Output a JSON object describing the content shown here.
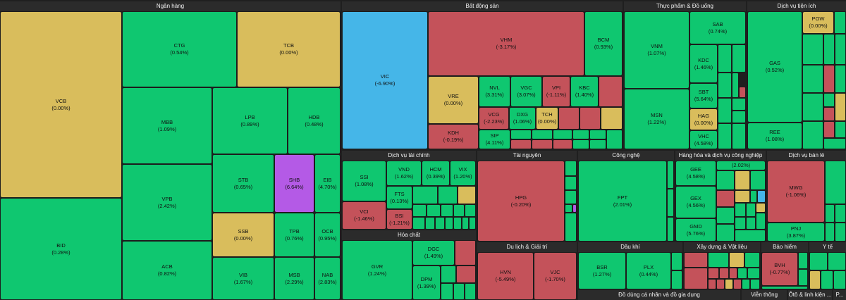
{
  "colors": {
    "up": "#0fc770",
    "flat": "#d9bd5c",
    "down": "#c4525a",
    "floor": "#45b6e8",
    "ceiling": "#b45ae6"
  },
  "sectors": {
    "ngan_hang": "Ngân hàng",
    "bat_dong_san": "Bất động sản",
    "thuc_pham": "Thực phẩm & Đồ uống",
    "dich_vu_tien_ich": "Dịch vụ tiện ích",
    "dich_vu_tai_chinh": "Dịch vụ tài chính",
    "tai_nguyen": "Tài nguyên",
    "cong_nghe": "Công nghệ",
    "hang_hoa": "Hàng hóa và dịch vụ công nghiệp",
    "dich_vu_ban_le": "Dịch vụ bán lẻ",
    "hoa_chat": "Hóa chất",
    "du_lich": "Du lịch & Giải trí",
    "dau_khi": "Dầu khí",
    "xay_dung": "Xây dựng & Vật liệu",
    "bao_hiem": "Bảo hiểm",
    "y_te": "Y tế",
    "do_dung": "Đồ dùng cá nhân và đồ gia dụng",
    "vien_thong": "Viễn thông",
    "oto": "Ôtô & linh kiện ...",
    "p": "P..."
  },
  "tiles": {
    "VCB": {
      "ticker": "VCB",
      "change": "(0.00%)"
    },
    "BID": {
      "ticker": "BID",
      "change": "(0.28%)"
    },
    "CTG": {
      "ticker": "CTG",
      "change": "(0.54%)"
    },
    "TCB": {
      "ticker": "TCB",
      "change": "(0.00%)"
    },
    "MBB": {
      "ticker": "MBB",
      "change": "(1.09%)"
    },
    "LPB": {
      "ticker": "LPB",
      "change": "(0.89%)"
    },
    "HDB": {
      "ticker": "HDB",
      "change": "(0.48%)"
    },
    "VPB": {
      "ticker": "VPB",
      "change": "(2.42%)"
    },
    "STB": {
      "ticker": "STB",
      "change": "(0.65%)"
    },
    "SHB": {
      "ticker": "SHB",
      "change": "(6.64%)"
    },
    "EIB": {
      "ticker": "EIB",
      "change": "(4.70%)"
    },
    "ACB": {
      "ticker": "ACB",
      "change": "(0.82%)"
    },
    "SSB": {
      "ticker": "SSB",
      "change": "(0.00%)"
    },
    "TPB": {
      "ticker": "TPB",
      "change": "(0.76%)"
    },
    "OCB": {
      "ticker": "OCB",
      "change": "(0.95%)"
    },
    "VIB": {
      "ticker": "VIB",
      "change": "(1.67%)"
    },
    "MSB": {
      "ticker": "MSB",
      "change": "(2.29%)"
    },
    "NAB": {
      "ticker": "NAB",
      "change": "(2.83%)"
    },
    "VIC": {
      "ticker": "VIC",
      "change": "(-6.90%)"
    },
    "VHM": {
      "ticker": "VHM",
      "change": "(-3.17%)"
    },
    "BCM": {
      "ticker": "BCM",
      "change": "(0.93%)"
    },
    "VRE": {
      "ticker": "VRE",
      "change": "(0.00%)"
    },
    "NVL": {
      "ticker": "NVL",
      "change": "(3.31%)"
    },
    "VGC": {
      "ticker": "VGC",
      "change": "(3.07%)"
    },
    "VPI": {
      "ticker": "VPI",
      "change": "(-1.11%)"
    },
    "KBC": {
      "ticker": "KBC",
      "change": "(1.40%)"
    },
    "VCG": {
      "ticker": "VCG",
      "change": "(-2.23%)"
    },
    "DXG": {
      "ticker": "DXG",
      "change": "(1.06%)"
    },
    "TCH": {
      "ticker": "TCH",
      "change": "(0.00%)"
    },
    "KDH": {
      "ticker": "KDH",
      "change": "(-0.19%)"
    },
    "SIP": {
      "ticker": "SIP",
      "change": "(4.11%)"
    },
    "VNM": {
      "ticker": "VNM",
      "change": "(1.07%)"
    },
    "SAB": {
      "ticker": "SAB",
      "change": "(0.74%)"
    },
    "KDC": {
      "ticker": "KDC",
      "change": "(1.46%)"
    },
    "SBT": {
      "ticker": "SBT",
      "change": "(5.64%)"
    },
    "MSN": {
      "ticker": "MSN",
      "change": "(1.22%)"
    },
    "HAG": {
      "ticker": "HAG",
      "change": "(0.00%)"
    },
    "VHC": {
      "ticker": "VHC",
      "change": "(4.58%)"
    },
    "POW": {
      "ticker": "POW",
      "change": "(0.00%)"
    },
    "GAS": {
      "ticker": "GAS",
      "change": "(0.52%)"
    },
    "REE": {
      "ticker": "REE",
      "change": "(1.08%)"
    },
    "SSI": {
      "ticker": "SSI",
      "change": "(1.08%)"
    },
    "VND": {
      "ticker": "VND",
      "change": "(1.62%)"
    },
    "HCM": {
      "ticker": "HCM",
      "change": "(0.39%)"
    },
    "VIX": {
      "ticker": "VIX",
      "change": "(1.20%)"
    },
    "FTS": {
      "ticker": "FTS",
      "change": "(0.13%)"
    },
    "VCI": {
      "ticker": "VCI",
      "change": "(-1.46%)"
    },
    "BSI": {
      "ticker": "BSI",
      "change": "(-1.21%)"
    },
    "HPG": {
      "ticker": "HPG",
      "change": "(-0.20%)"
    },
    "FPT": {
      "ticker": "FPT",
      "change": "(2.01%)"
    },
    "GEE": {
      "ticker": "GEE",
      "change": "(4.58%)"
    },
    "GEE2": {
      "ticker": "",
      "change": "(2.02%)"
    },
    "GEX": {
      "ticker": "GEX",
      "change": "(4.56%)"
    },
    "GMD": {
      "ticker": "GMD",
      "change": "(5.76%)"
    },
    "MWG": {
      "ticker": "MWG",
      "change": "(-1.06%)"
    },
    "PNJ": {
      "ticker": "PNJ",
      "change": "(3.87%)"
    },
    "GVR": {
      "ticker": "GVR",
      "change": "(1.24%)"
    },
    "DGC": {
      "ticker": "DGC",
      "change": "(1.49%)"
    },
    "DPM": {
      "ticker": "DPM",
      "change": "(1.39%)"
    },
    "HVN": {
      "ticker": "HVN",
      "change": "(-5.49%)"
    },
    "VJC": {
      "ticker": "VJC",
      "change": "(-1.70%)"
    },
    "BSR": {
      "ticker": "BSR",
      "change": "(1.27%)"
    },
    "PLX": {
      "ticker": "PLX",
      "change": "(0.44%)"
    },
    "BVH": {
      "ticker": "BVH",
      "change": "(-0.77%)"
    }
  }
}
